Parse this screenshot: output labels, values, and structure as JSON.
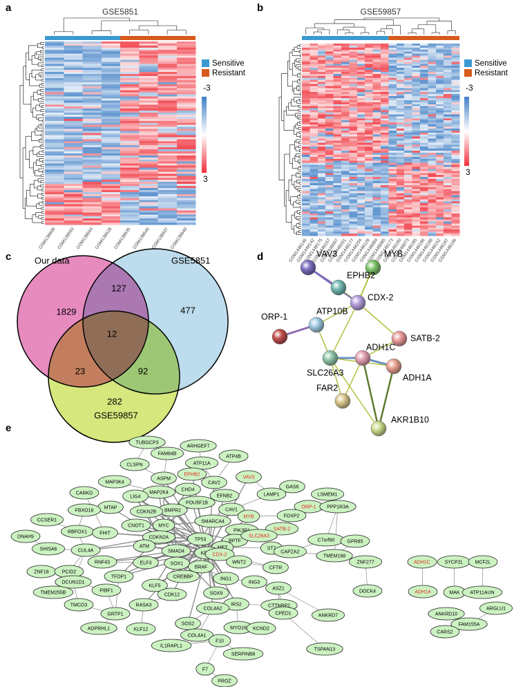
{
  "a": {
    "label": "a",
    "title": "GSE5851",
    "samples": [
      "GSM138609",
      "GSM138593",
      "GSM138664",
      "GSM138628",
      "GSM138635",
      "GSM138646",
      "GSM138607",
      "GSM138640"
    ],
    "legend": [
      "Sensitive",
      "Resistant"
    ],
    "scale": [
      -3,
      3
    ]
  },
  "b": {
    "label": "b",
    "title": "GSE59857",
    "samples": [
      "GSM1448146",
      "GSM1448142",
      "GSM1448175",
      "GSM1448167",
      "GSM1448097",
      "GSM1448201",
      "GSM1448177",
      "GSM1448204",
      "GSM1448128",
      "GSM1448089",
      "GSM1448085",
      "GSM1448173",
      "GSM1448180",
      "GSM1448073",
      "GSM1448185",
      "GSM1448186",
      "GSM1448188",
      "GSM1448152",
      "GSM1448187",
      "GSM1448196"
    ],
    "legend": [
      "Sensitive",
      "Resistant"
    ],
    "scale": [
      -3,
      3
    ]
  },
  "c": {
    "label": "c",
    "sets": [
      "Our data",
      "GSE5851",
      "GSE59857"
    ],
    "regions": [
      1829,
      127,
      477,
      12,
      23,
      92,
      282
    ]
  },
  "d": {
    "label": "d",
    "nodes": [
      "VAV3",
      "MYB",
      "EPHB2",
      "CDX-2",
      "ORP-1",
      "ATP10B",
      "SATB-2",
      "ADH1C",
      "ADH1A",
      "SLC26A3",
      "FAR2",
      "AKR1B10"
    ]
  },
  "e": {
    "label": "e",
    "nodes": [
      {
        "name": "TUBGCP3"
      },
      {
        "name": "ARHGEF7"
      },
      {
        "name": "FAM84B"
      },
      {
        "name": "ATP11A"
      },
      {
        "name": "ATP4B"
      },
      {
        "name": "CLSPN"
      },
      {
        "name": "EPHB2",
        "color": "#e3261b"
      },
      {
        "name": "VAV3",
        "color": "#e3261b"
      },
      {
        "name": "ASPM"
      },
      {
        "name": "CAV2"
      },
      {
        "name": "MAP3K4"
      },
      {
        "name": "GAS6"
      },
      {
        "name": "CHD4"
      },
      {
        "name": "LAMP1"
      },
      {
        "name": "LSMEM1"
      },
      {
        "name": "ORP-1",
        "color": "#e3261b"
      },
      {
        "name": "MAP2K4"
      },
      {
        "name": "EFNB2"
      },
      {
        "name": "CARKD"
      },
      {
        "name": "LIG4"
      },
      {
        "name": "POU5F1B"
      },
      {
        "name": "PPP1R3A"
      },
      {
        "name": "CAV1"
      },
      {
        "name": "MTAP"
      },
      {
        "name": "FBXO16"
      },
      {
        "name": "BMPR2"
      },
      {
        "name": "CDKN2B"
      },
      {
        "name": "MYB",
        "color": "#e3261b"
      },
      {
        "name": "FOXP2"
      },
      {
        "name": "CNOT1"
      },
      {
        "name": "SMARCA4"
      },
      {
        "name": "SATB-2",
        "color": "#e3261b"
      },
      {
        "name": "CCSER1"
      },
      {
        "name": "RBFOX1"
      },
      {
        "name": "MYC"
      },
      {
        "name": "PIK3R1"
      },
      {
        "name": "FHIT"
      },
      {
        "name": "C7orf60"
      },
      {
        "name": "DNAH9"
      },
      {
        "name": "CDKN2A"
      },
      {
        "name": "TP53"
      },
      {
        "name": "BPTF"
      },
      {
        "name": "SLC26A3",
        "color": "#e3261b"
      },
      {
        "name": "GPR85"
      },
      {
        "name": "SHISA6"
      },
      {
        "name": "CUL4A"
      },
      {
        "name": "ATM"
      },
      {
        "name": "SMAD4"
      },
      {
        "name": "MET"
      },
      {
        "name": "ST7"
      },
      {
        "name": "KRAS"
      },
      {
        "name": "CAPZA2"
      },
      {
        "name": "TMEM168"
      },
      {
        "name": "RNF43"
      },
      {
        "name": "ELF3"
      },
      {
        "name": "SOX1"
      },
      {
        "name": "CDX-2",
        "color": "#e3261b"
      },
      {
        "name": "BRAF"
      },
      {
        "name": "WNT2"
      },
      {
        "name": "ZNF18"
      },
      {
        "name": "PCID2"
      },
      {
        "name": "DCUN1D1"
      },
      {
        "name": "TFDP1"
      },
      {
        "name": "CREBBP"
      },
      {
        "name": "CFTR"
      },
      {
        "name": "ZNF277"
      },
      {
        "name": "ADH1C",
        "color": "#e3261b"
      },
      {
        "name": "SYCP2L"
      },
      {
        "name": "MCF2L"
      },
      {
        "name": "KLF5"
      },
      {
        "name": "ING1"
      },
      {
        "name": "ING3"
      },
      {
        "name": "ASZ1"
      },
      {
        "name": "TMEM255B"
      },
      {
        "name": "PIBF1"
      },
      {
        "name": "CDK12"
      },
      {
        "name": "SOX9"
      },
      {
        "name": "DOCK4"
      },
      {
        "name": "ADH1A",
        "color": "#e3261b"
      },
      {
        "name": "MAK"
      },
      {
        "name": "ATP11AUN"
      },
      {
        "name": "TMCO3"
      },
      {
        "name": "RASA3"
      },
      {
        "name": "IRS2"
      },
      {
        "name": "CTTNBP2"
      },
      {
        "name": "GRTP1"
      },
      {
        "name": "COL4A2"
      },
      {
        "name": "ANKRD7"
      },
      {
        "name": "CPED1"
      },
      {
        "name": "ANKRD10"
      },
      {
        "name": "FAM155A"
      },
      {
        "name": "ARGLU1"
      },
      {
        "name": "ADPRHL1"
      },
      {
        "name": "KLF12"
      },
      {
        "name": "SOS2"
      },
      {
        "name": "MYO16"
      },
      {
        "name": "KCND2"
      },
      {
        "name": "CARS2"
      },
      {
        "name": "COL4A1"
      },
      {
        "name": "F10"
      },
      {
        "name": "IL1RAPL1"
      },
      {
        "name": "TSPAN13"
      },
      {
        "name": "SERPINB8"
      },
      {
        "name": "F7"
      },
      {
        "name": "PROZ"
      }
    ]
  }
}
